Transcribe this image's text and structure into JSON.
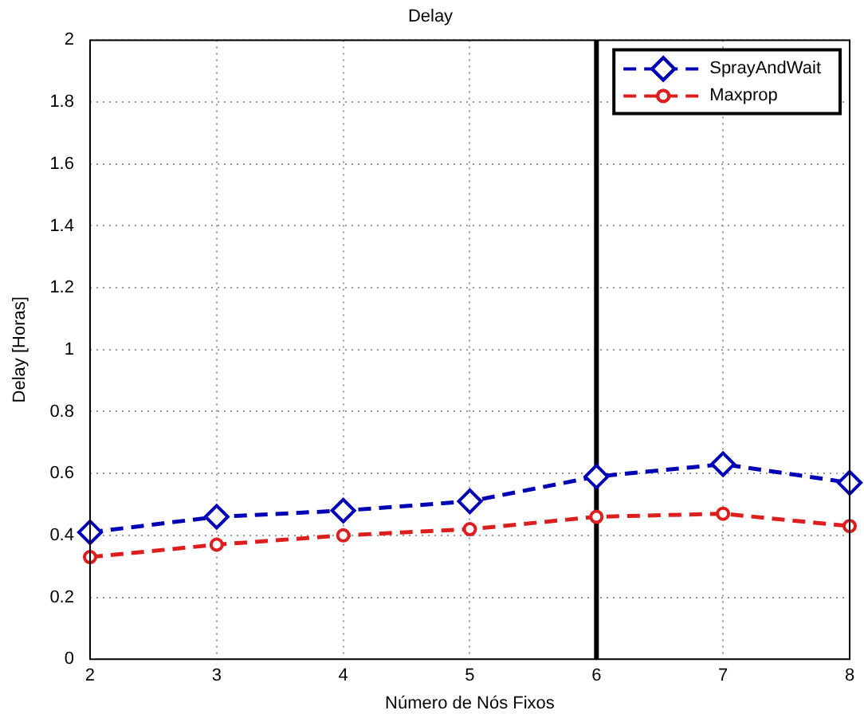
{
  "chart_data": {
    "type": "line",
    "title": "Delay",
    "xlabel": "Número de Nós Fixos",
    "ylabel": "Delay [Horas]",
    "x": [
      2,
      3,
      4,
      5,
      6,
      7,
      8
    ],
    "series": [
      {
        "name": "SprayAndWait",
        "color": "#0000b4",
        "marker": "diamond",
        "values": [
          0.41,
          0.46,
          0.48,
          0.51,
          0.59,
          0.63,
          0.57
        ]
      },
      {
        "name": "Maxprop",
        "color": "#dc1e1e",
        "marker": "circle",
        "values": [
          0.33,
          0.37,
          0.4,
          0.42,
          0.46,
          0.47,
          0.43
        ]
      }
    ],
    "xlim": [
      2,
      8
    ],
    "xticks": [
      2,
      3,
      4,
      5,
      6,
      7,
      8
    ],
    "ylim": [
      0,
      2
    ],
    "yticks": [
      0,
      0.2,
      0.4,
      0.6,
      0.8,
      1,
      1.2,
      1.4,
      1.6,
      1.8,
      2
    ],
    "ref_lines": [
      {
        "axis": "x",
        "value": 6,
        "color": "#000000",
        "line_style": "solid"
      }
    ],
    "grid": true,
    "legend": "top right",
    "line_style": "dashed"
  }
}
